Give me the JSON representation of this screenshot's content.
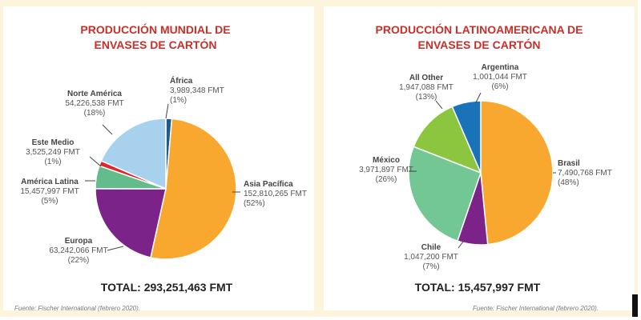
{
  "colors": {
    "title_red": "#c8302a",
    "label_text": "#555555",
    "frame_cream": "#fdf4dd",
    "divider_green": "#2f5f4a"
  },
  "charts": [
    {
      "title_line1": "PRODUCCIÓN MUNDIAL DE",
      "title_line2": "ENVASES DE CARTÓN",
      "total": "TOTAL: 293,251,463 FMT",
      "source": "Fuente: Fischer International (febrero 2020)."
    },
    {
      "title_line1": "PRODUCCIÓN LATINOAMERICANA DE",
      "title_line2": "ENVASES DE CARTÓN",
      "total": "TOTAL: 15,457,997 FMT",
      "source": "Fuente: Fischer International (febrero 2020)."
    }
  ],
  "chart_data": [
    {
      "type": "pie",
      "title": "PRODUCCIÓN MUNDIAL DE ENVASES DE CARTÓN",
      "total": "TOTAL: 293,251,463 FMT",
      "slices": [
        {
          "name": "África",
          "value": 3989348,
          "value_label": "3,989,348 FMT",
          "pct_label": "(1%)",
          "color": "#1f5a8c"
        },
        {
          "name": "Asia Pacífica",
          "value": 152810265,
          "value_label": "152,810,265 FMT",
          "pct_label": "(52%)",
          "color": "#f8a82e"
        },
        {
          "name": "Europa",
          "value": 63242066,
          "value_label": "63,242,066 FMT",
          "pct_label": "(22%)",
          "color": "#7b2388"
        },
        {
          "name": "América Latina",
          "value": 15457997,
          "value_label": "15,457,997 FMT",
          "pct_label": "(5%)",
          "color": "#63bc8c"
        },
        {
          "name": "Este Medio",
          "value": 3525249,
          "value_label": "3,525,249 FMT",
          "pct_label": "(1%)",
          "color": "#e0262a"
        },
        {
          "name": "Norte América",
          "value": 54226538,
          "value_label": "54,226,538 FMT",
          "pct_label": "(18%)",
          "color": "#a8d1ee"
        }
      ]
    },
    {
      "type": "pie",
      "title": "PRODUCCIÓN LATINOAMERICANA DE ENVASES DE CARTÓN",
      "total": "TOTAL: 15,457,997 FMT",
      "slices": [
        {
          "name": "Brasil",
          "value": 7490768,
          "value_label": "7,490,768 FMT",
          "pct_label": "(48%)",
          "color": "#f8a82e"
        },
        {
          "name": "Chile",
          "value": 1047200,
          "value_label": "1,047,200 FMT",
          "pct_label": "(7%)",
          "color": "#7b2388"
        },
        {
          "name": "México",
          "value": 3971897,
          "value_label": "3,971,897 FMT",
          "pct_label": "(26%)",
          "color": "#72c794"
        },
        {
          "name": "All Other",
          "value": 1947088,
          "value_label": "1,947,088 FMT",
          "pct_label": "(13%)",
          "color": "#8cc63e"
        },
        {
          "name": "Argentina",
          "value": 1001044,
          "value_label": "1,001,044 FMT",
          "pct_label": "(6%)",
          "color": "#1a72b8"
        }
      ]
    }
  ]
}
